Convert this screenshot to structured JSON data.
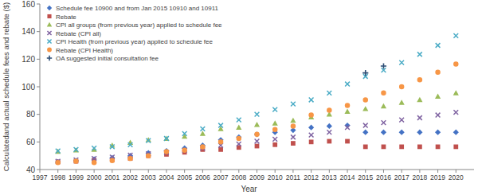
{
  "chart_data": {
    "type": "scatter",
    "x_label": "Year",
    "y_label": "Calculatedand actual schedule fees and rebate ($)",
    "x": [
      1998,
      1999,
      2000,
      2001,
      2002,
      2003,
      2004,
      2005,
      2006,
      2007,
      2008,
      2009,
      2010,
      2011,
      2012,
      2013,
      2014,
      2015,
      2016,
      2017,
      2018,
      2019,
      2020
    ],
    "xlim": [
      1997,
      2021
    ],
    "xticks": [
      1997,
      1998,
      1999,
      2000,
      2001,
      2002,
      2003,
      2004,
      2005,
      2006,
      2007,
      2008,
      2009,
      2010,
      2011,
      2012,
      2013,
      2014,
      2015,
      2016,
      2017,
      2018,
      2019,
      2020
    ],
    "ylim": [
      40,
      160
    ],
    "yticks": [
      40,
      60,
      80,
      100,
      120,
      140,
      160
    ],
    "grid": false,
    "legend": "top-left",
    "series": [
      {
        "name": "Schedule fee 10900 and from Jan 2015 10910 and 10911",
        "color": "#4472c4",
        "marker": "diamond",
        "values": [
          45.5,
          46.5,
          47.5,
          48.5,
          50,
          52,
          53.5,
          55.5,
          57.5,
          61.5,
          63.5,
          65.5,
          67,
          68.5,
          70.5,
          71.5,
          72,
          67,
          67,
          67,
          67,
          67,
          67
        ]
      },
      {
        "name": "Rebate",
        "color": "#c0504d",
        "marker": "square",
        "values": [
          45.5,
          46,
          46.5,
          47,
          48,
          50,
          51,
          52.5,
          54.5,
          54.5,
          56,
          57,
          58,
          59,
          60,
          60.5,
          60.5,
          56.5,
          56.5,
          56.5,
          56.5,
          56.5,
          56.5
        ]
      },
      {
        "name": "CPI all groups (from previous year) applied to schedule fee",
        "color": "#9bbb59",
        "marker": "triangle",
        "values": [
          53,
          54,
          54.5,
          57.5,
          59.5,
          61.5,
          62.5,
          64,
          66,
          69.5,
          70.5,
          72.5,
          73.5,
          75.5,
          78,
          80,
          82,
          84,
          86,
          88.5,
          90.5,
          93,
          95.5
        ]
      },
      {
        "name": "Rebate (CPI all)",
        "color": "#8064a2",
        "marker": "x",
        "values": [
          46,
          47,
          48,
          49,
          50.5,
          51.5,
          52.5,
          54,
          55.5,
          57.5,
          58.5,
          60.5,
          62,
          63.5,
          65,
          67,
          70.5,
          72,
          74,
          76,
          77.5,
          79.5,
          81.5
        ]
      },
      {
        "name": "CPI Health  (from previous year) applied to schedule fee",
        "color": "#4bacc6",
        "marker": "x",
        "values": [
          53.5,
          54.5,
          55.5,
          56.5,
          58,
          61,
          62.5,
          66,
          69.5,
          72,
          76,
          80,
          83.5,
          87.5,
          90.5,
          95.5,
          102,
          107.5,
          112,
          117.5,
          123.5,
          130,
          137
        ]
      },
      {
        "name": "Rebate (CPI Health)",
        "color": "#f79646",
        "marker": "circle",
        "values": [
          45,
          46,
          45,
          46.5,
          48,
          50,
          53,
          54,
          56.5,
          60,
          62.5,
          65.5,
          69,
          71.5,
          79.5,
          83,
          86.5,
          90.5,
          95.5,
          100,
          105,
          110.5,
          116.5
        ]
      },
      {
        "name": "OA suggested initial consultation fee",
        "color": "#2c4d75",
        "marker": "plus",
        "values": [
          null,
          null,
          null,
          null,
          null,
          null,
          null,
          null,
          null,
          null,
          null,
          null,
          null,
          null,
          null,
          null,
          null,
          110,
          115,
          null,
          null,
          null,
          null
        ]
      }
    ]
  }
}
